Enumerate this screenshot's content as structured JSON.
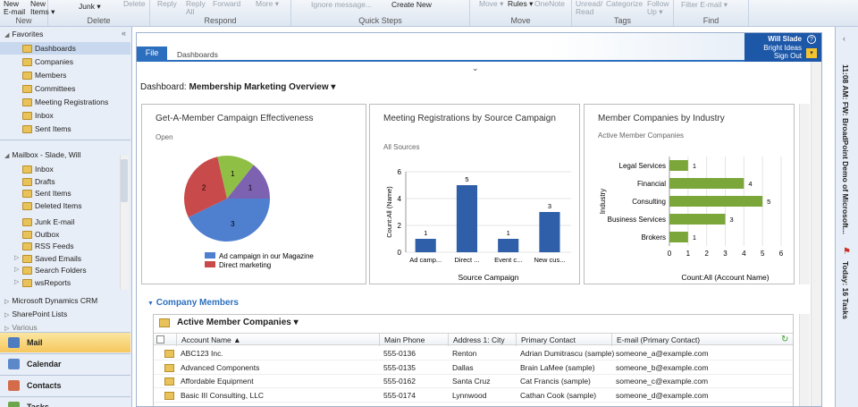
{
  "ribbon": {
    "new_email": "New\nE-mail",
    "new_items": "New\nItems ▾",
    "junk": "Junk ▾",
    "delete": "Delete",
    "reply": "Reply",
    "reply_all": "Reply\nAll",
    "forward": "Forward",
    "more": "More ▾",
    "ignore_message": "Ignore message...",
    "create_new": "Create New",
    "move": "Move ▾",
    "rules": "Rules ▾",
    "onenote": "OneNote",
    "unread_read": "Unread/\nRead",
    "categorize": "Categorize",
    "follow_up": "Follow\nUp ▾",
    "filter_email": "Filter E-mail ▾",
    "groups": {
      "new": "New",
      "delete": "Delete",
      "respond": "Respond",
      "quick_steps": "Quick Steps",
      "move": "Move",
      "tags": "Tags",
      "find": "Find"
    }
  },
  "nav": {
    "favorites": "Favorites",
    "fav_items": [
      "Dashboards",
      "Companies",
      "Members",
      "Committees",
      "Meeting Registrations",
      "Inbox",
      "Sent Items"
    ],
    "mailbox": "Mailbox - Slade, Will",
    "mail_items": [
      "Inbox",
      "Drafts",
      "Sent Items",
      "Deleted Items",
      "Junk E-mail",
      "Outbox",
      "RSS Feeds",
      "Saved Emails",
      "Search Folders",
      "wsReports"
    ],
    "crm": "Microsoft Dynamics CRM",
    "sharepoint": "SharePoint Lists",
    "more": "Various",
    "buttons": [
      "Mail",
      "Calendar",
      "Contacts",
      "Tasks"
    ]
  },
  "crm": {
    "file_tab": "File",
    "breadcrumb": "Dashboards",
    "user_name": "Will Slade",
    "user_org": "Bright Ideas",
    "sign_out": "Sign Out",
    "dashboard_label": "Dashboard:",
    "dashboard_name": "Membership Marketing Overview ▾"
  },
  "panels": {
    "pie": {
      "title": "Get-A-Member Campaign Effectiveness",
      "subtitle": "Open",
      "legend": [
        "Ad campaign in our Magazine",
        "Direct marketing"
      ]
    },
    "bar": {
      "title": "Meeting Registrations by Source Campaign",
      "subtitle": "All Sources",
      "ylabel": "Count:All (Name)",
      "xlabel": "Source Campaign"
    },
    "hbar": {
      "title": "Member Companies by Industry",
      "subtitle": "Active Member Companies",
      "ylabel": "Industry",
      "xlabel": "Count:All (Account Name)"
    }
  },
  "section": {
    "title": "Company Members",
    "view": "Active Member Companies ▾"
  },
  "grid": {
    "columns": [
      "Account Name ▲",
      "Main Phone",
      "Address 1: City",
      "Primary Contact",
      "E-mail (Primary Contact)"
    ],
    "rows": [
      [
        "ABC123 Inc.",
        "555-0136",
        "Renton",
        "Adrian Dumitrascu (sample)",
        "someone_a@example.com"
      ],
      [
        "Advanced Components",
        "555-0135",
        "Dallas",
        "Brain LaMee (sample)",
        "someone_b@example.com"
      ],
      [
        "Affordable Equipment",
        "555-0162",
        "Santa Cruz",
        "Cat Francis (sample)",
        "someone_c@example.com"
      ],
      [
        "Basic III Consulting, LLC",
        "555-0174",
        "Lynnwood",
        "Cathan Cook (sample)",
        "someone_d@example.com"
      ]
    ]
  },
  "rightbar": {
    "message": "11:08 AM: FW: BroadPoint Demo of Microsoft...",
    "tasks": "Today: 16 Tasks"
  },
  "colors": {
    "accent": "#2c6fbe",
    "pie1": "#4f7fcf",
    "pie2": "#c84a4a",
    "pie3": "#8fc045",
    "pie4": "#7e62b2",
    "bar": "#2f5fa8",
    "hbar": "#7aa63a"
  },
  "chart_data": [
    {
      "type": "pie",
      "title": "Get-A-Member Campaign Effectiveness",
      "categories": [
        "Ad campaign in our Magazine",
        "Direct marketing",
        "Slice 3",
        "Slice 4"
      ],
      "values": [
        3,
        2,
        1,
        1
      ]
    },
    {
      "type": "bar",
      "title": "Meeting Registrations by Source Campaign",
      "categories": [
        "Ad camp...",
        "Direct ...",
        "Event c...",
        "New cus..."
      ],
      "values": [
        1,
        5,
        1,
        3
      ],
      "xlabel": "Source Campaign",
      "ylabel": "Count:All (Name)",
      "ylim": [
        0,
        6
      ],
      "yticks": [
        0,
        2,
        4,
        6
      ]
    },
    {
      "type": "bar",
      "orientation": "horizontal",
      "title": "Member Companies by Industry",
      "categories": [
        "Legal Services",
        "Financial",
        "Consulting",
        "Business Services",
        "Brokers"
      ],
      "values": [
        1,
        4,
        5,
        3,
        1
      ],
      "xlabel": "Count:All (Account Name)",
      "ylabel": "Industry",
      "xlim": [
        0,
        6
      ],
      "xticks": [
        0,
        1,
        2,
        3,
        4,
        5,
        6
      ]
    }
  ]
}
